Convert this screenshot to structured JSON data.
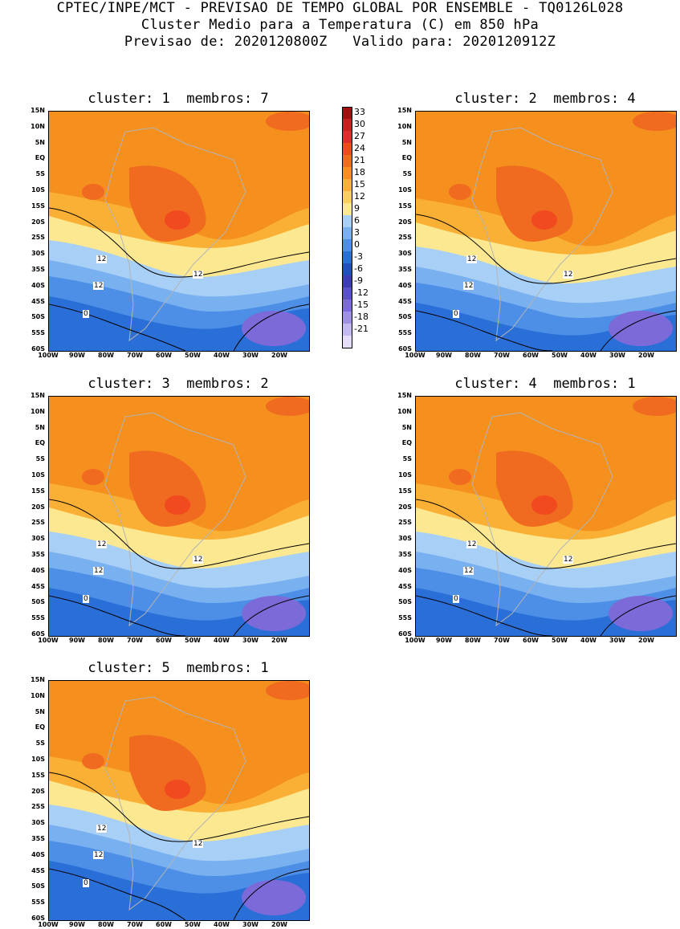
{
  "header": {
    "line1": "CPTEC/INPE/MCT - PREVISAO DE TEMPO GLOBAL POR ENSEMBLE - TQ0126L028",
    "line2": "Cluster Medio para a Temperatura (C) em 850 hPa",
    "line3": "Previsao de: 2020120800Z   Valido para: 2020120912Z"
  },
  "panels": [
    {
      "title": "cluster: 1  membros: 7"
    },
    {
      "title": "cluster: 2  membros: 4"
    },
    {
      "title": "cluster: 3  membros: 2"
    },
    {
      "title": "cluster: 4  membros: 1"
    },
    {
      "title": "cluster: 5  membros: 1"
    }
  ],
  "lat_labels": [
    "15N",
    "10N",
    "5N",
    "EQ",
    "5S",
    "10S",
    "15S",
    "20S",
    "25S",
    "30S",
    "35S",
    "40S",
    "45S",
    "50S",
    "55S",
    "60S"
  ],
  "lon_labels": [
    "100W",
    "90W",
    "80W",
    "70W",
    "60W",
    "50W",
    "40W",
    "30W",
    "20W"
  ],
  "contour_labels": [
    "12",
    "12",
    "12",
    "0"
  ],
  "colorbar": {
    "labels": [
      "33",
      "30",
      "27",
      "24",
      "21",
      "18",
      "15",
      "12",
      "9",
      "6",
      "3",
      "0",
      "-3",
      "-6",
      "-9",
      "-12",
      "-15",
      "-18",
      "-21"
    ],
    "colors": [
      "#a01010",
      "#c82020",
      "#e02c2c",
      "#f04a1e",
      "#f06a20",
      "#f5901e",
      "#f9b035",
      "#f9d060",
      "#fbe890",
      "#a8cff5",
      "#78b0f0",
      "#4d8fe6",
      "#2a6fd8",
      "#2050c0",
      "#3c3cb8",
      "#5a50c8",
      "#7c6ad8",
      "#a090e4",
      "#c4b8f0",
      "#e4dcf8"
    ]
  }
}
